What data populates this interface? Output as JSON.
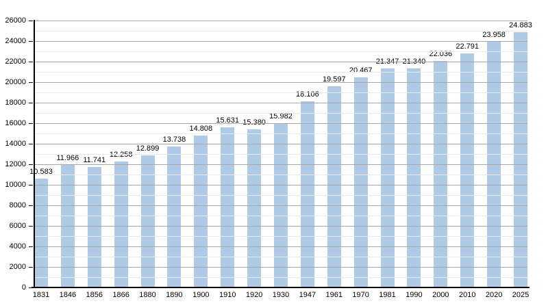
{
  "chart_data": {
    "type": "bar",
    "title": "",
    "xlabel": "",
    "ylabel": "",
    "categories": [
      "1831",
      "1846",
      "1856",
      "1866",
      "1880",
      "1890",
      "1900",
      "1910",
      "1920",
      "1930",
      "1947",
      "1961",
      "1970",
      "1981",
      "1990",
      "2000",
      "2010",
      "2020",
      "2025"
    ],
    "values": [
      10583,
      11966,
      11741,
      12258,
      12899,
      13738,
      14808,
      15631,
      15380,
      15982,
      18106,
      19597,
      20467,
      21347,
      21340,
      22036,
      22791,
      23958,
      24883
    ],
    "value_labels": [
      "10.583",
      "11.966",
      "11.741",
      "12.258",
      "12.899",
      "13.738",
      "14.808",
      "15.631",
      "15.380",
      "15.982",
      "18.106",
      "19.597",
      "20.467",
      "21.347",
      "21.340",
      "22.036",
      "22.791",
      "23.958",
      "24.883"
    ],
    "ylim": [
      0,
      26000
    ],
    "y_major_step": 2000,
    "y_minor_step": 1000,
    "y_tick_labels": [
      "0",
      "2000",
      "4000",
      "6000",
      "8000",
      "10000",
      "12000",
      "14000",
      "16000",
      "18000",
      "20000",
      "22000",
      "24000",
      "26000"
    ],
    "grid": "on",
    "legend": "none",
    "bar_color": "#aecae6",
    "major_grid_color": "#a6a6a6",
    "minor_grid_color": "#e9e9e9",
    "axis_color": "#000000",
    "text_color": "#000000"
  }
}
